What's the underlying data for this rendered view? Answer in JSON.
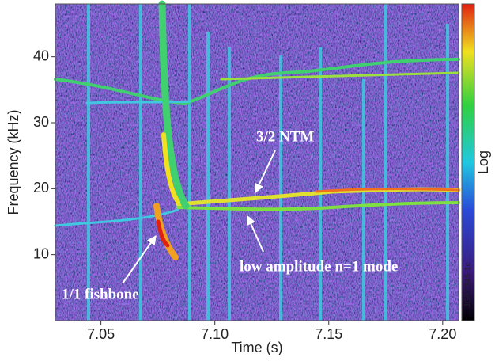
{
  "chart_data": {
    "type": "spectrogram",
    "xlabel": "Time (s)",
    "ylabel": "Frequency (kHz)",
    "xlim": [
      7.03,
      7.207
    ],
    "ylim": [
      0,
      48
    ],
    "xticks": [
      7.05,
      {
        "value": 7.1,
        "label": "7.10"
      },
      7.15,
      {
        "value": 7.2,
        "label": "7.20"
      }
    ],
    "yticks": [
      10,
      20,
      30,
      40
    ],
    "colorbar_label": "Log",
    "annotations": [
      "3/2 NTM",
      "low amplitude n=1 mode",
      "1/1 fishbone"
    ],
    "figure_id": "JG07.345-1c"
  }
}
